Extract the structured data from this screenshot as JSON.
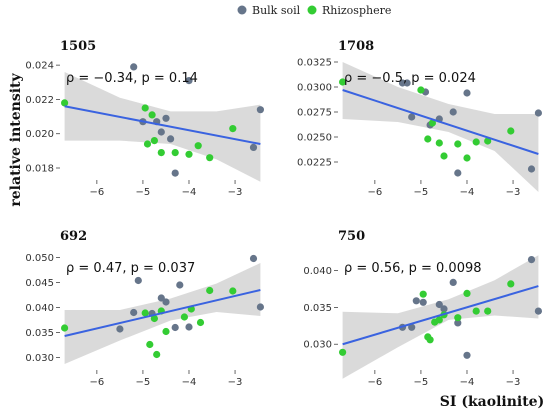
{
  "legend": [
    {
      "name": "Bulk soil",
      "color": "#66758a"
    },
    {
      "name": "Rhizosphere",
      "color": "#33cc33"
    }
  ],
  "ylabel": "relative intensity",
  "xlabel": "SI (kaolinite)",
  "colors": {
    "band": "#d6d6d6",
    "line": "#3a63e0"
  },
  "chart_data": [
    {
      "type": "scatter",
      "title": "1505",
      "annotation": "ρ = −0.34, p = 0.14",
      "xlim": [
        -6.8,
        -2.35
      ],
      "ylim": [
        0.0173,
        0.0243
      ],
      "xticks": [
        -6,
        -5,
        -4,
        -3
      ],
      "xtick_labels": [
        "−6",
        "−5",
        "−4",
        "−3"
      ],
      "yticks": [
        0.018,
        0.02,
        0.022,
        0.024
      ],
      "ytick_labels": [
        "0.018",
        "0.020",
        "0.022",
        "0.024"
      ],
      "fit": {
        "x": [
          -6.7,
          -2.45
        ],
        "y": [
          0.0216,
          0.0194
        ]
      },
      "band": [
        [
          -6.7,
          0.0236,
          0.0196
        ],
        [
          -5.5,
          0.0221,
          0.0196
        ],
        [
          -4.4,
          0.0213,
          0.0194
        ],
        [
          -3.4,
          0.0213,
          0.0185
        ],
        [
          -2.45,
          0.0217,
          0.0172
        ]
      ],
      "series": [
        {
          "name": "Bulk soil",
          "x": [
            -5.2,
            -5.0,
            -4.7,
            -4.6,
            -4.5,
            -4.4,
            -4.3,
            -4.0,
            -2.6,
            -2.45
          ],
          "y": [
            0.0239,
            0.0207,
            0.0207,
            0.0201,
            0.0209,
            0.0197,
            0.0177,
            0.0231,
            0.0192,
            0.0214
          ]
        },
        {
          "name": "Rhizosphere",
          "x": [
            -6.7,
            -4.95,
            -4.9,
            -4.8,
            -4.75,
            -4.6,
            -4.3,
            -4.0,
            -3.8,
            -3.55,
            -3.05
          ],
          "y": [
            0.0218,
            0.0215,
            0.0194,
            0.0211,
            0.0196,
            0.0189,
            0.0189,
            0.0188,
            0.0193,
            0.0186,
            0.0203
          ]
        }
      ]
    },
    {
      "type": "scatter",
      "title": "1708",
      "annotation": "ρ = −0.5, p = 0.024",
      "xlim": [
        -6.8,
        -2.35
      ],
      "ylim": [
        0.0207,
        0.0327
      ],
      "xticks": [
        -6,
        -5,
        -4,
        -3
      ],
      "xtick_labels": [
        "−6",
        "−5",
        "−4",
        "−3"
      ],
      "yticks": [
        0.0225,
        0.025,
        0.0275,
        0.03,
        0.0325
      ],
      "ytick_labels": [
        "0.0225",
        "0.0250",
        "0.0275",
        "0.0300",
        "0.0325"
      ],
      "fit": {
        "x": [
          -6.7,
          -2.45
        ],
        "y": [
          0.0297,
          0.0233
        ]
      },
      "band": [
        [
          -6.7,
          0.0325,
          0.0268
        ],
        [
          -5.5,
          0.03,
          0.0265
        ],
        [
          -4.4,
          0.0283,
          0.0255
        ],
        [
          -3.4,
          0.0273,
          0.0236
        ],
        [
          -2.45,
          0.0273,
          0.0195
        ]
      ],
      "series": [
        {
          "name": "Bulk soil",
          "x": [
            -5.4,
            -5.3,
            -5.2,
            -4.9,
            -4.8,
            -4.6,
            -4.3,
            -4.2,
            -4.0,
            -2.6,
            -2.45
          ],
          "y": [
            0.0304,
            0.0304,
            0.027,
            0.0295,
            0.0262,
            0.0268,
            0.0275,
            0.0214,
            0.0294,
            0.0218,
            0.0274
          ]
        },
        {
          "name": "Rhizosphere",
          "x": [
            -6.7,
            -5.0,
            -4.85,
            -4.75,
            -4.6,
            -4.5,
            -4.2,
            -4.0,
            -3.8,
            -3.55,
            -3.05
          ],
          "y": [
            0.0305,
            0.0297,
            0.0248,
            0.0264,
            0.0244,
            0.0231,
            0.0243,
            0.0229,
            0.0245,
            0.0246,
            0.0256
          ]
        }
      ]
    },
    {
      "type": "scatter",
      "title": "692",
      "annotation": "ρ = 0.47, p = 0.037",
      "xlim": [
        -6.8,
        -2.35
      ],
      "ylim": [
        0.0275,
        0.0515
      ],
      "xticks": [
        -6,
        -5,
        -4,
        -3
      ],
      "xtick_labels": [
        "−6",
        "−5",
        "−4",
        "−3"
      ],
      "yticks": [
        0.03,
        0.035,
        0.04,
        0.045,
        0.05
      ],
      "ytick_labels": [
        "0.030",
        "0.035",
        "0.040",
        "0.045",
        "0.050"
      ],
      "fit": {
        "x": [
          -6.7,
          -2.45
        ],
        "y": [
          0.0343,
          0.0435
        ]
      },
      "band": [
        [
          -6.7,
          0.0395,
          0.0287
        ],
        [
          -5.5,
          0.0395,
          0.0334
        ],
        [
          -4.4,
          0.0418,
          0.0374
        ],
        [
          -3.4,
          0.0448,
          0.0391
        ],
        [
          -2.45,
          0.0489,
          0.0383
        ]
      ],
      "series": [
        {
          "name": "Bulk soil",
          "x": [
            -5.5,
            -5.2,
            -5.1,
            -4.8,
            -4.6,
            -4.5,
            -4.3,
            -4.2,
            -4.0,
            -2.6,
            -2.45
          ],
          "y": [
            0.0357,
            0.039,
            0.0454,
            0.0388,
            0.0419,
            0.0411,
            0.036,
            0.0445,
            0.0361,
            0.0498,
            0.0401
          ]
        },
        {
          "name": "Rhizosphere",
          "x": [
            -6.7,
            -4.95,
            -4.85,
            -4.75,
            -4.7,
            -4.6,
            -4.5,
            -4.1,
            -3.95,
            -3.75,
            -3.55,
            -3.05
          ],
          "y": [
            0.0359,
            0.0389,
            0.0326,
            0.0378,
            0.0306,
            0.0393,
            0.0352,
            0.0381,
            0.0397,
            0.037,
            0.0434,
            0.0433
          ]
        }
      ]
    },
    {
      "type": "scatter",
      "title": "750",
      "annotation": "ρ = 0.56, p = 0.0098",
      "xlim": [
        -6.8,
        -2.35
      ],
      "ylim": [
        0.0265,
        0.0428
      ],
      "xticks": [
        -6,
        -5,
        -4,
        -3
      ],
      "xtick_labels": [
        "−6",
        "−5",
        "−4",
        "−3"
      ],
      "yticks": [
        0.03,
        0.035,
        0.04
      ],
      "ytick_labels": [
        "0.030",
        "0.035",
        "0.040"
      ],
      "fit": {
        "x": [
          -6.7,
          -2.45
        ],
        "y": [
          0.03,
          0.0379
        ]
      },
      "band": [
        [
          -6.7,
          0.0344,
          0.0253
        ],
        [
          -5.5,
          0.0342,
          0.0296
        ],
        [
          -4.4,
          0.0361,
          0.0333
        ],
        [
          -3.4,
          0.0387,
          0.0339
        ],
        [
          -2.45,
          0.0421,
          0.0335
        ]
      ],
      "series": [
        {
          "name": "Bulk soil",
          "x": [
            -5.4,
            -5.2,
            -5.1,
            -4.95,
            -4.6,
            -4.5,
            -4.3,
            -4.2,
            -4.0,
            -2.6,
            -2.45
          ],
          "y": [
            0.0323,
            0.0323,
            0.0359,
            0.0357,
            0.0354,
            0.0348,
            0.0384,
            0.0329,
            0.0285,
            0.0415,
            0.0345
          ]
        },
        {
          "name": "Rhizosphere",
          "x": [
            -6.7,
            -4.95,
            -4.85,
            -4.8,
            -4.7,
            -4.6,
            -4.5,
            -4.2,
            -4.0,
            -3.8,
            -3.55,
            -3.05
          ],
          "y": [
            0.0289,
            0.0368,
            0.031,
            0.0306,
            0.033,
            0.0333,
            0.034,
            0.0336,
            0.0369,
            0.0345,
            0.0345,
            0.0382
          ]
        }
      ]
    }
  ]
}
